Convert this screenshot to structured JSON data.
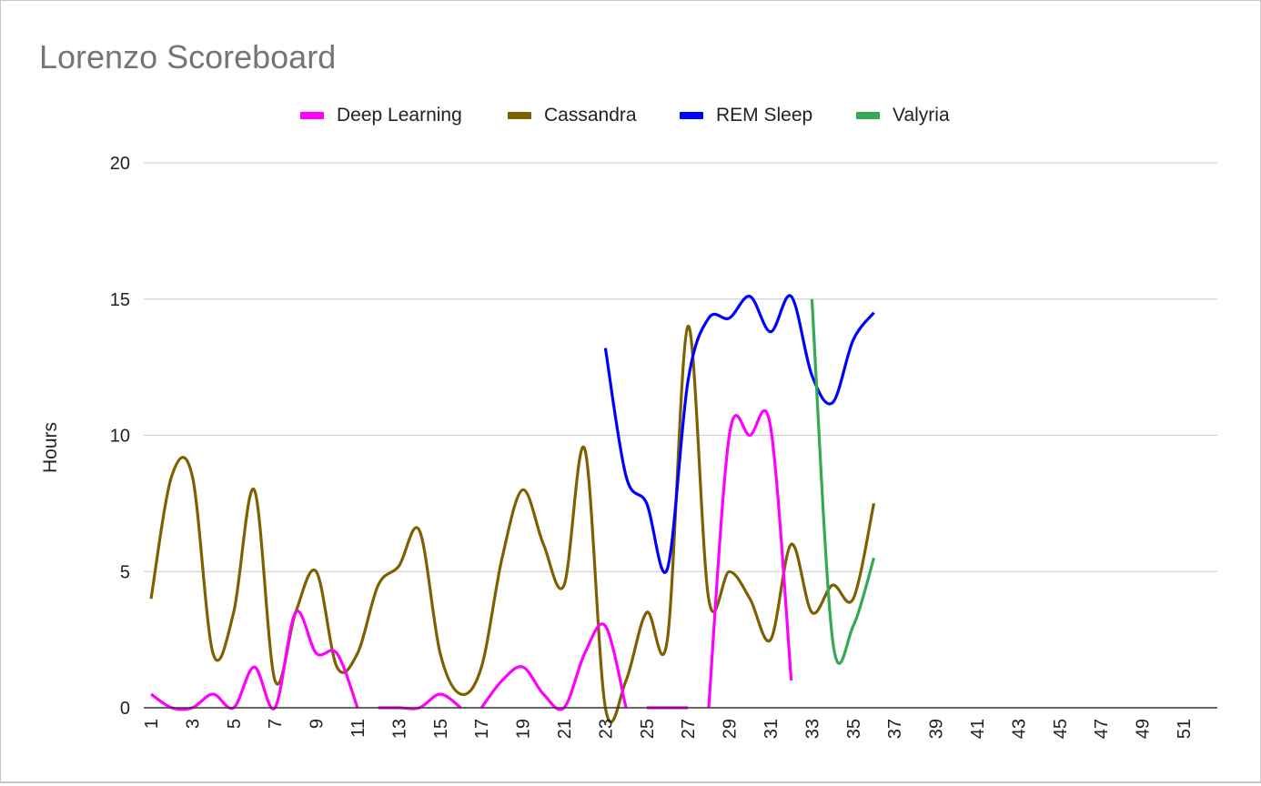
{
  "chart_data": {
    "type": "line",
    "title": "Lorenzo Scoreboard",
    "xlabel": "",
    "ylabel": "Hours",
    "ylim": [
      0,
      20
    ],
    "yticks": [
      "0",
      "5",
      "10",
      "15",
      "20"
    ],
    "xlim": [
      1,
      52
    ],
    "xticks": [
      "1",
      "3",
      "5",
      "7",
      "9",
      "11",
      "13",
      "15",
      "17",
      "19",
      "21",
      "23",
      "25",
      "27",
      "29",
      "31",
      "33",
      "35",
      "37",
      "39",
      "41",
      "43",
      "45",
      "47",
      "49",
      "51"
    ],
    "grid": true,
    "legend_position": "top",
    "series": [
      {
        "name": "Deep Learning",
        "color": "#ff00ff",
        "x": [
          1,
          2,
          3,
          4,
          5,
          6,
          7,
          8,
          9,
          10,
          11,
          null,
          12,
          13,
          14,
          15,
          16,
          null,
          17,
          18,
          19,
          20,
          21,
          22,
          23,
          24,
          null,
          25,
          26,
          27,
          null,
          28,
          29,
          30,
          31,
          32
        ],
        "y": [
          0.5,
          0,
          0,
          0.5,
          0,
          1.5,
          0,
          3.5,
          2,
          2,
          0,
          null,
          0,
          0,
          0,
          0.5,
          0,
          null,
          0,
          1,
          1.5,
          0.5,
          0,
          2,
          3,
          0,
          null,
          0,
          0,
          0,
          null,
          0,
          10,
          10,
          10.3,
          1
        ]
      },
      {
        "name": "Cassandra",
        "color": "#7f6000",
        "x": [
          1,
          2,
          3,
          4,
          5,
          6,
          7,
          8,
          9,
          10,
          11,
          12,
          13,
          14,
          15,
          16,
          17,
          18,
          19,
          20,
          21,
          22,
          23,
          24,
          25,
          26,
          27,
          28,
          29,
          30,
          31,
          32,
          33,
          34,
          35,
          36
        ],
        "y": [
          4,
          8.5,
          8.5,
          2,
          3.5,
          8,
          1,
          3.5,
          5,
          1.5,
          2,
          4.5,
          5.2,
          6.5,
          2,
          0.5,
          1.5,
          5.5,
          8,
          6,
          4.5,
          9.5,
          0,
          1,
          3.5,
          2.5,
          14,
          4,
          5,
          4,
          2.5,
          6,
          3.5,
          4.5,
          4,
          7.5
        ]
      },
      {
        "name": "REM Sleep",
        "color": "#0000ff",
        "x": [
          23,
          24,
          25,
          26,
          27,
          28,
          29,
          30,
          31,
          32,
          33,
          34,
          35,
          36
        ],
        "y": [
          13.2,
          8.5,
          7.5,
          5.1,
          12,
          14.3,
          14.3,
          15.1,
          13.8,
          15.1,
          12.2,
          11.2,
          13.5,
          14.5
        ]
      },
      {
        "name": "Valyria",
        "color": "#34a853",
        "x": [
          33,
          34,
          35,
          36
        ],
        "y": [
          15,
          2.5,
          3,
          5.5
        ]
      }
    ]
  }
}
